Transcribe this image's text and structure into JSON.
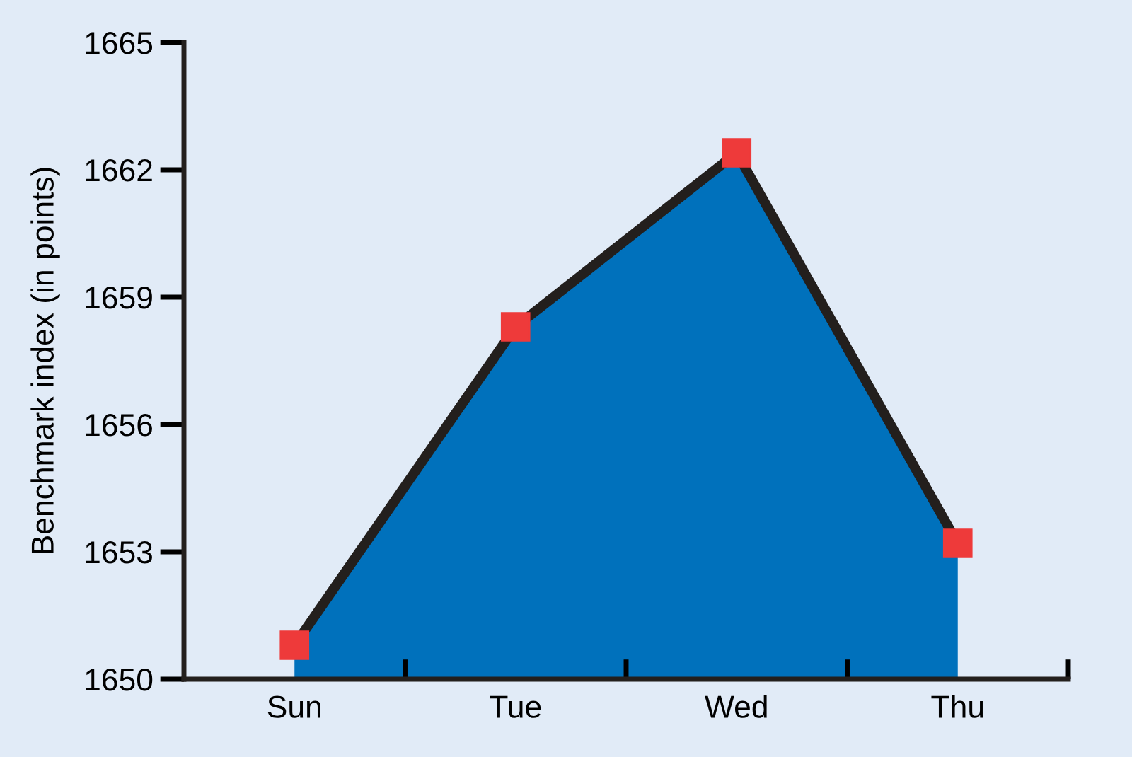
{
  "chart_data": {
    "type": "area",
    "ylabel": "Benchmark index (in points)",
    "categories": [
      "Sun",
      "Tue",
      "Wed",
      "Thu"
    ],
    "series": [
      {
        "color": "#0071bc",
        "values": [
          1650.8,
          1658.3,
          1662.4,
          1653.2
        ]
      }
    ],
    "ylim": [
      1650,
      1665
    ],
    "yticks": [
      1650,
      1653,
      1656,
      1659,
      1662,
      1665
    ],
    "grid": false,
    "legend": false,
    "marker": "square",
    "line_style": "solid"
  }
}
